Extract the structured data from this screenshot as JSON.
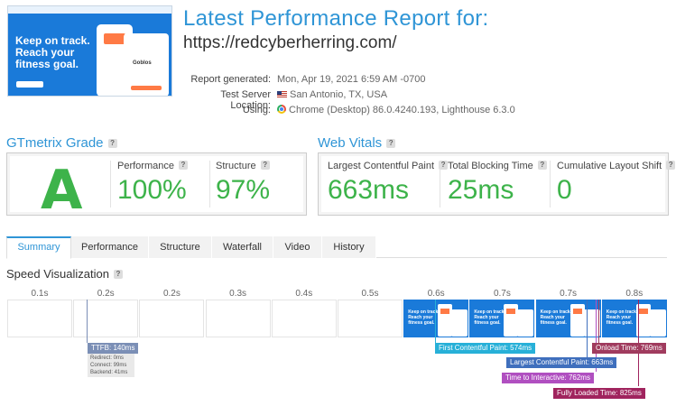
{
  "header": {
    "title": "Latest Performance Report for:",
    "url": "https://redcyberherring.com/"
  },
  "thumbnail": {
    "hero_text": "Keep on track.\nReach your\nfitness goal.",
    "card_text": "Goblos"
  },
  "meta": {
    "report_generated_label": "Report generated:",
    "report_generated_value": "Mon, Apr 19, 2021 6:59 AM -0700",
    "server_location_label": "Test Server Location:",
    "server_location_value": "San Antonio, TX, USA",
    "using_label": "Using:",
    "using_value": "Chrome (Desktop) 86.0.4240.193, Lighthouse 6.3.0"
  },
  "grade": {
    "title": "GTmetrix Grade",
    "help": "?",
    "letter": "A",
    "performance_label": "Performance",
    "performance_value": "100%",
    "structure_label": "Structure",
    "structure_value": "97%"
  },
  "vitals": {
    "title": "Web Vitals",
    "help": "?",
    "lcp_label": "Largest Contentful Paint",
    "lcp_value": "663ms",
    "tbt_label": "Total Blocking Time",
    "tbt_value": "25ms",
    "cls_label": "Cumulative Layout Shift",
    "cls_value": "0"
  },
  "tabs": [
    "Summary",
    "Performance",
    "Structure",
    "Waterfall",
    "Video",
    "History"
  ],
  "active_tab": "Summary",
  "speed_viz": {
    "title": "Speed Visualization",
    "help": "?",
    "ticks": [
      "0.1s",
      "0.2s",
      "0.2s",
      "0.3s",
      "0.4s",
      "0.5s",
      "0.6s",
      "0.7s",
      "0.7s",
      "0.8s"
    ],
    "frames_filled": [
      false,
      false,
      false,
      false,
      false,
      false,
      true,
      true,
      true,
      true
    ],
    "frame_text": "Keep on track.\nReach your\nfitness goal.",
    "ttfb": "TTFB: 140ms",
    "ttfb_redirect": "Redirect: 0ms",
    "ttfb_connect": "Connect: 99ms",
    "ttfb_backend": "Backend: 41ms",
    "fcp": "First Contentful Paint: 574ms",
    "lcp": "Largest Contentful Paint: 663ms",
    "tti": "Time to Interactive: 762ms",
    "onload": "Onload Time: 769ms",
    "fully_loaded": "Fully Loaded Time: 825ms"
  },
  "colors": {
    "accent": "#2f95d6",
    "grade_green": "#3db34a",
    "ttfb": "#7b8fb6",
    "fcp": "#27b0d8",
    "lcp": "#3f6fbd",
    "tti": "#b04fc0",
    "onload": "#a03b5e",
    "fully_loaded": "#a0245e"
  }
}
